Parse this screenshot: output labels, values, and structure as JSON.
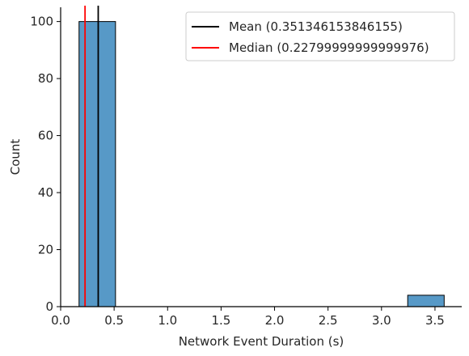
{
  "chart_data": {
    "type": "bar",
    "xlabel": "Network Event Duration (s)",
    "ylabel": "Count",
    "xlim": [
      0.0,
      3.75
    ],
    "ylim": [
      0,
      105
    ],
    "x_ticks": [
      "0.0",
      "0.5",
      "1.0",
      "1.5",
      "2.0",
      "2.5",
      "3.0",
      "3.5"
    ],
    "x_tick_values": [
      0.0,
      0.5,
      1.0,
      1.5,
      2.0,
      2.5,
      3.0,
      3.5
    ],
    "y_ticks": [
      "0",
      "20",
      "40",
      "60",
      "80",
      "100"
    ],
    "y_tick_values": [
      0,
      20,
      40,
      60,
      80,
      100
    ],
    "bins": [
      {
        "start": 0.172,
        "end": 0.513,
        "count": 100
      },
      {
        "start": 3.245,
        "end": 3.586,
        "count": 4
      }
    ],
    "bar_color": "#5799c7",
    "lines": [
      {
        "label": "Mean (0.351346153846155)",
        "x": 0.351346153846155,
        "color": "#000000"
      },
      {
        "label": "Median (0.22799999999999976)",
        "x": 0.22799999999999976,
        "color": "#ff0000"
      }
    ],
    "legend_position": "top-right",
    "grid": false
  }
}
